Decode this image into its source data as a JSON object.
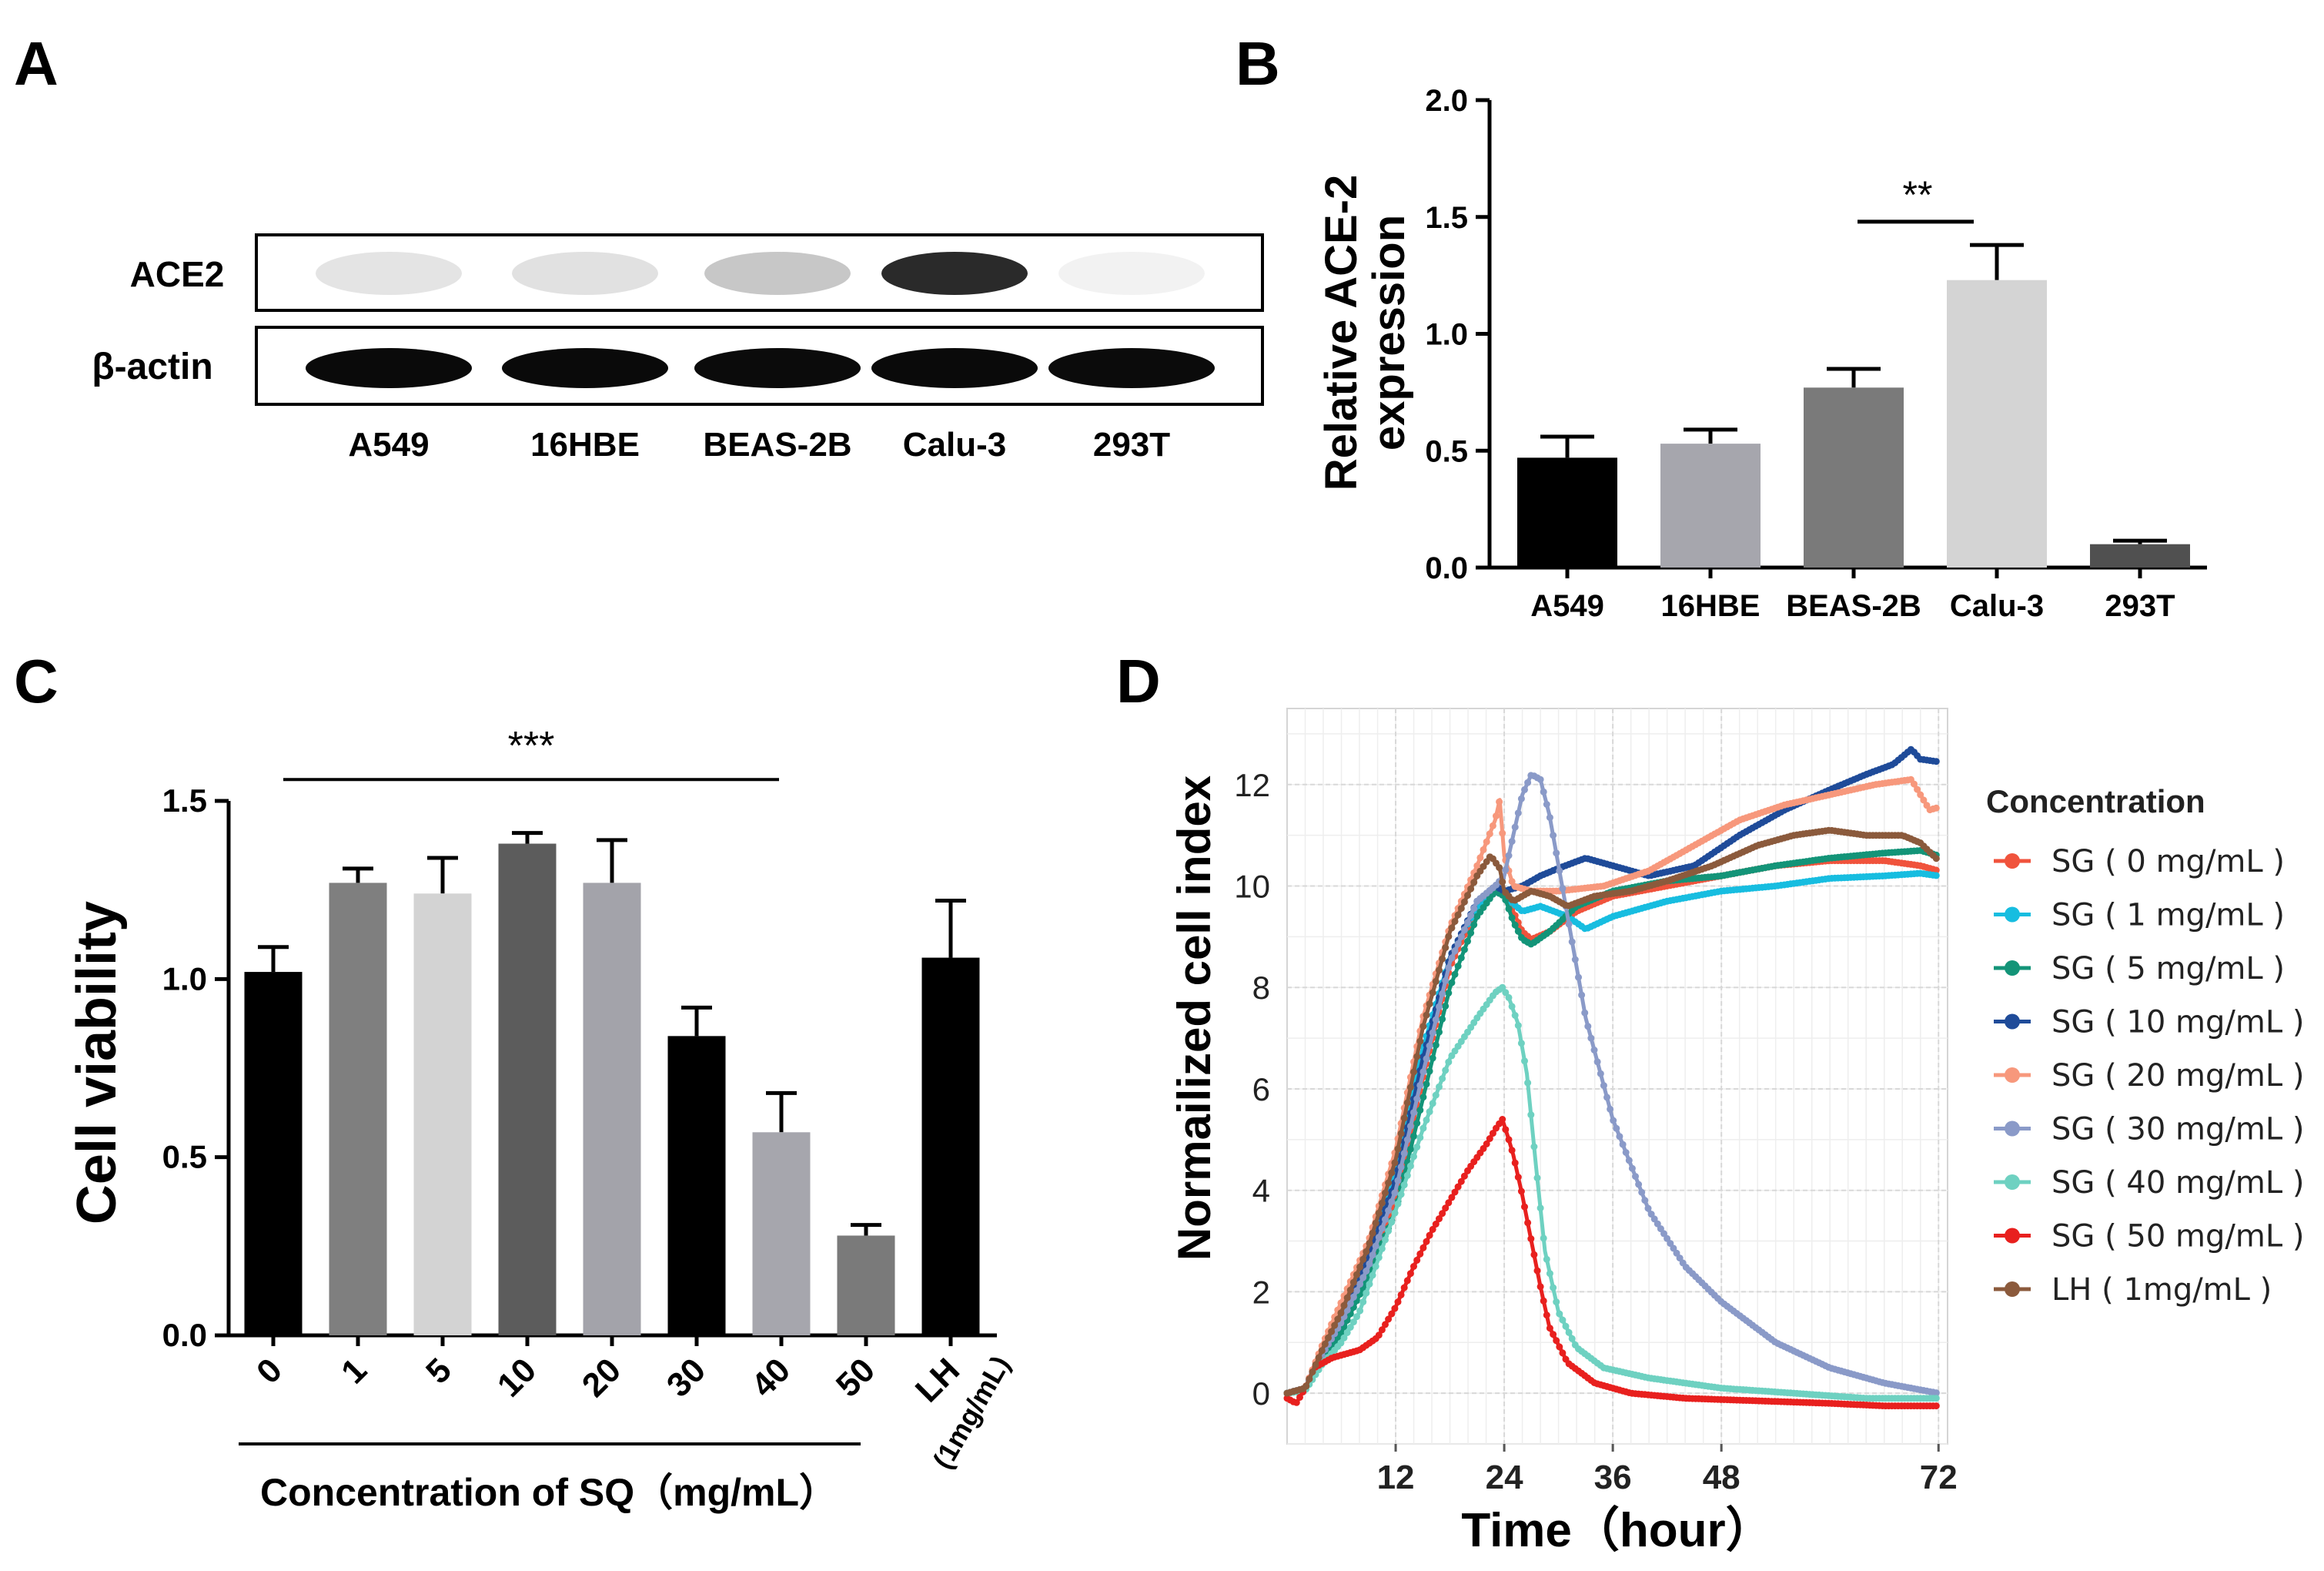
{
  "panels": {
    "A": {
      "label": "A",
      "row_labels": [
        "ACE2",
        "β-actin"
      ],
      "lanes": [
        "A549",
        "16HBE",
        "BEAS-2B",
        "Calu-3",
        "293T"
      ],
      "ace2_band_intensity": [
        0.08,
        0.1,
        0.22,
        0.95,
        0.02
      ],
      "actin_band_intensity": [
        1.0,
        1.0,
        0.98,
        1.0,
        0.98
      ]
    },
    "B": {
      "label": "B"
    },
    "C": {
      "label": "C"
    },
    "D": {
      "label": "D"
    }
  },
  "chart_data": [
    {
      "id": "B",
      "type": "bar",
      "categories": [
        "A549",
        "16HBE",
        "BEAS-2B",
        "Calu-3",
        "293T"
      ],
      "values": [
        0.47,
        0.53,
        0.77,
        1.23,
        0.1
      ],
      "errors": [
        0.09,
        0.06,
        0.08,
        0.15,
        0.015
      ],
      "colors": [
        "#000000",
        "#a6a6ad",
        "#7a7a7a",
        "#d4d4d4",
        "#505050"
      ],
      "ylabel_lines": [
        "Relative ACE-2",
        "expression"
      ],
      "ylim": [
        0,
        2.0
      ],
      "yticks": [
        0.0,
        0.5,
        1.0,
        1.5,
        2.0
      ],
      "ytick_labels": [
        "0.0",
        "0.5",
        "1.0",
        "1.5",
        "2.0"
      ],
      "significance": {
        "from": 2,
        "to": 3,
        "label": "**",
        "y": 1.48
      }
    },
    {
      "id": "C",
      "type": "bar",
      "categories": [
        "0",
        "1",
        "5",
        "10",
        "20",
        "30",
        "40",
        "50",
        "LH"
      ],
      "extra_label": "(1mg/mL)",
      "values": [
        1.02,
        1.27,
        1.24,
        1.38,
        1.27,
        0.84,
        0.57,
        0.28,
        1.06
      ],
      "errors": [
        0.07,
        0.04,
        0.1,
        0.03,
        0.12,
        0.08,
        0.11,
        0.03,
        0.16
      ],
      "colors": [
        "#000000",
        "#7f7f7f",
        "#d3d3d3",
        "#5c5c5c",
        "#a3a3aa",
        "#000000",
        "#a6a6ad",
        "#7a7a7a",
        "#000000"
      ],
      "ylabel": "Cell viability",
      "xlabel": "Concentration of SQ（mg/mL）",
      "ylim": [
        0,
        1.5
      ],
      "yticks": [
        0.0,
        0.5,
        1.0,
        1.5
      ],
      "ytick_labels": [
        "0.0",
        "0.5",
        "1.0",
        "1.5"
      ],
      "significance": {
        "from": 0,
        "to": 6,
        "label": "***",
        "y": 1.56
      }
    },
    {
      "id": "D",
      "type": "line",
      "title": "",
      "xlabel": "Time（hour）",
      "ylabel": "Normailized cell index",
      "xlim": [
        0,
        73
      ],
      "ylim": [
        -1,
        13.5
      ],
      "xticks": [
        12,
        24,
        36,
        48,
        72
      ],
      "yticks": [
        0,
        2,
        4,
        6,
        8,
        10,
        12
      ],
      "legend_title": "Concentration",
      "series": [
        {
          "name": "SG ( 0 mg/mL )",
          "color": "#f0533c",
          "points": [
            [
              0,
              0
            ],
            [
              2,
              0.1
            ],
            [
              4,
              0.8
            ],
            [
              6,
              1.5
            ],
            [
              9,
              2.5
            ],
            [
              12,
              3.8
            ],
            [
              15,
              6.2
            ],
            [
              18,
              8.4
            ],
            [
              21,
              9.6
            ],
            [
              23,
              10.0
            ],
            [
              24,
              9.9
            ],
            [
              25,
              9.5
            ],
            [
              26,
              9.1
            ],
            [
              27,
              8.95
            ],
            [
              29,
              9.1
            ],
            [
              32,
              9.5
            ],
            [
              36,
              9.8
            ],
            [
              42,
              10.0
            ],
            [
              48,
              10.2
            ],
            [
              54,
              10.4
            ],
            [
              60,
              10.5
            ],
            [
              66,
              10.5
            ],
            [
              70,
              10.4
            ],
            [
              72,
              10.3
            ]
          ]
        },
        {
          "name": "SG ( 1 mg/mL )",
          "color": "#17bde0",
          "points": [
            [
              0,
              0
            ],
            [
              2,
              0.1
            ],
            [
              4,
              0.7
            ],
            [
              6,
              1.3
            ],
            [
              9,
              2.6
            ],
            [
              12,
              4.5
            ],
            [
              15,
              6.8
            ],
            [
              18,
              8.6
            ],
            [
              21,
              9.6
            ],
            [
              23,
              9.95
            ],
            [
              24,
              9.8
            ],
            [
              26,
              9.5
            ],
            [
              28,
              9.6
            ],
            [
              31,
              9.4
            ],
            [
              33,
              9.15
            ],
            [
              36,
              9.4
            ],
            [
              42,
              9.7
            ],
            [
              48,
              9.9
            ],
            [
              54,
              10.0
            ],
            [
              60,
              10.15
            ],
            [
              66,
              10.2
            ],
            [
              70,
              10.25
            ],
            [
              72,
              10.2
            ]
          ]
        },
        {
          "name": "SG ( 5 mg/mL )",
          "color": "#139478",
          "points": [
            [
              0,
              0
            ],
            [
              2,
              0.1
            ],
            [
              4,
              0.7
            ],
            [
              6,
              1.2
            ],
            [
              9,
              2.3
            ],
            [
              12,
              3.6
            ],
            [
              15,
              5.8
            ],
            [
              18,
              8.0
            ],
            [
              21,
              9.4
            ],
            [
              23,
              9.9
            ],
            [
              24,
              9.8
            ],
            [
              25,
              9.3
            ],
            [
              26,
              8.95
            ],
            [
              27,
              8.85
            ],
            [
              29,
              9.1
            ],
            [
              32,
              9.6
            ],
            [
              36,
              9.9
            ],
            [
              42,
              10.1
            ],
            [
              48,
              10.2
            ],
            [
              54,
              10.4
            ],
            [
              60,
              10.55
            ],
            [
              66,
              10.65
            ],
            [
              70,
              10.7
            ],
            [
              72,
              10.6
            ]
          ]
        },
        {
          "name": "SG ( 10 mg/mL )",
          "color": "#1f4b99",
          "points": [
            [
              0,
              0
            ],
            [
              2,
              0.1
            ],
            [
              4,
              0.8
            ],
            [
              6,
              1.4
            ],
            [
              9,
              2.7
            ],
            [
              12,
              4.2
            ],
            [
              15,
              6.6
            ],
            [
              18,
              8.6
            ],
            [
              21,
              9.7
            ],
            [
              23,
              10.0
            ],
            [
              24,
              9.9
            ],
            [
              26,
              10.0
            ],
            [
              28,
              10.2
            ],
            [
              30,
              10.35
            ],
            [
              33,
              10.55
            ],
            [
              36,
              10.4
            ],
            [
              40,
              10.2
            ],
            [
              45,
              10.4
            ],
            [
              50,
              11.0
            ],
            [
              55,
              11.5
            ],
            [
              60,
              11.9
            ],
            [
              64,
              12.2
            ],
            [
              67,
              12.4
            ],
            [
              69,
              12.7
            ],
            [
              70,
              12.5
            ],
            [
              72,
              12.45
            ]
          ]
        },
        {
          "name": "SG ( 20 mg/mL )",
          "color": "#f7987c",
          "points": [
            [
              0,
              0
            ],
            [
              2,
              0.1
            ],
            [
              4,
              1.0
            ],
            [
              6,
              1.8
            ],
            [
              9,
              3.0
            ],
            [
              12,
              4.8
            ],
            [
              15,
              7.4
            ],
            [
              18,
              9.2
            ],
            [
              21,
              10.4
            ],
            [
              23,
              11.3
            ],
            [
              23.5,
              11.7
            ],
            [
              24,
              10.6
            ],
            [
              25,
              10.0
            ],
            [
              27,
              9.9
            ],
            [
              30,
              9.9
            ],
            [
              35,
              10.0
            ],
            [
              40,
              10.3
            ],
            [
              45,
              10.8
            ],
            [
              50,
              11.3
            ],
            [
              55,
              11.6
            ],
            [
              60,
              11.8
            ],
            [
              65,
              12.0
            ],
            [
              69,
              12.1
            ],
            [
              70,
              11.8
            ],
            [
              71,
              11.5
            ],
            [
              72,
              11.55
            ]
          ]
        },
        {
          "name": "SG ( 30 mg/mL )",
          "color": "#8a9ac8",
          "points": [
            [
              0,
              0
            ],
            [
              2,
              0.1
            ],
            [
              4,
              0.8
            ],
            [
              6,
              1.4
            ],
            [
              9,
              2.5
            ],
            [
              12,
              4.0
            ],
            [
              15,
              6.3
            ],
            [
              18,
              8.5
            ],
            [
              21,
              9.7
            ],
            [
              23,
              10.0
            ],
            [
              24,
              10.2
            ],
            [
              25,
              11.0
            ],
            [
              26,
              11.8
            ],
            [
              27,
              12.2
            ],
            [
              28,
              12.1
            ],
            [
              29,
              11.4
            ],
            [
              31,
              9.4
            ],
            [
              33,
              7.4
            ],
            [
              36,
              5.4
            ],
            [
              40,
              3.6
            ],
            [
              44,
              2.5
            ],
            [
              48,
              1.8
            ],
            [
              54,
              1.0
            ],
            [
              60,
              0.5
            ],
            [
              66,
              0.2
            ],
            [
              72,
              0.0
            ]
          ]
        },
        {
          "name": "SG ( 40 mg/mL )",
          "color": "#6ed1c1",
          "points": [
            [
              0,
              0
            ],
            [
              2,
              0.05
            ],
            [
              4,
              0.6
            ],
            [
              6,
              1.0
            ],
            [
              8,
              1.6
            ],
            [
              10,
              2.6
            ],
            [
              12,
              3.6
            ],
            [
              15,
              5.2
            ],
            [
              18,
              6.6
            ],
            [
              21,
              7.4
            ],
            [
              23,
              7.9
            ],
            [
              23.8,
              8.0
            ],
            [
              24.5,
              7.8
            ],
            [
              25.5,
              7.3
            ],
            [
              26.5,
              6.3
            ],
            [
              27.5,
              4.5
            ],
            [
              28.5,
              2.8
            ],
            [
              30,
              1.6
            ],
            [
              32,
              0.9
            ],
            [
              35,
              0.5
            ],
            [
              40,
              0.3
            ],
            [
              48,
              0.1
            ],
            [
              56,
              0.0
            ],
            [
              64,
              -0.1
            ],
            [
              72,
              -0.1
            ]
          ]
        },
        {
          "name": "SG ( 50 mg/mL )",
          "color": "#e8201e",
          "points": [
            [
              0,
              -0.1
            ],
            [
              1,
              -0.2
            ],
            [
              2,
              0.1
            ],
            [
              3,
              0.5
            ],
            [
              5,
              0.7
            ],
            [
              8,
              0.85
            ],
            [
              10,
              1.1
            ],
            [
              12,
              1.7
            ],
            [
              14,
              2.5
            ],
            [
              16,
              3.2
            ],
            [
              18,
              3.8
            ],
            [
              20,
              4.4
            ],
            [
              22,
              4.9
            ],
            [
              23,
              5.2
            ],
            [
              23.8,
              5.4
            ],
            [
              24.5,
              5.0
            ],
            [
              25,
              4.7
            ],
            [
              26,
              3.9
            ],
            [
              27,
              3.0
            ],
            [
              28,
              2.1
            ],
            [
              29,
              1.3
            ],
            [
              31,
              0.6
            ],
            [
              34,
              0.2
            ],
            [
              38,
              0.0
            ],
            [
              44,
              -0.1
            ],
            [
              52,
              -0.15
            ],
            [
              60,
              -0.2
            ],
            [
              66,
              -0.25
            ],
            [
              72,
              -0.25
            ]
          ]
        },
        {
          "name": "LH ( 1mg/mL )",
          "color": "#8b5a3c",
          "points": [
            [
              0,
              0
            ],
            [
              2,
              0.1
            ],
            [
              4,
              0.9
            ],
            [
              6,
              1.6
            ],
            [
              9,
              2.9
            ],
            [
              12,
              4.6
            ],
            [
              15,
              7.2
            ],
            [
              18,
              9.1
            ],
            [
              21,
              10.2
            ],
            [
              22.5,
              10.6
            ],
            [
              23.5,
              10.35
            ],
            [
              24,
              9.9
            ],
            [
              25,
              9.7
            ],
            [
              27,
              9.9
            ],
            [
              29,
              9.8
            ],
            [
              31,
              9.6
            ],
            [
              34,
              9.8
            ],
            [
              38,
              9.9
            ],
            [
              42,
              10.1
            ],
            [
              47,
              10.4
            ],
            [
              52,
              10.8
            ],
            [
              56,
              11.0
            ],
            [
              60,
              11.1
            ],
            [
              64,
              11.0
            ],
            [
              68,
              11.0
            ],
            [
              70,
              10.85
            ],
            [
              72,
              10.5
            ]
          ]
        }
      ]
    }
  ]
}
